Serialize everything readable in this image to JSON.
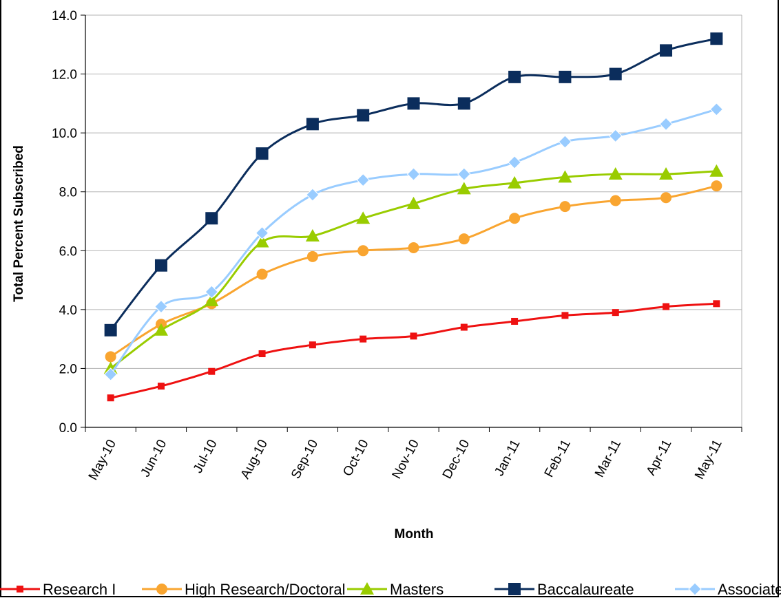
{
  "chart_data": {
    "type": "line",
    "title": "",
    "xlabel": "Month",
    "ylabel": "Total Percent Subscribed",
    "ylim": [
      0,
      14
    ],
    "y_ticks": [
      "0.0",
      "2.0",
      "4.0",
      "6.0",
      "8.0",
      "10.0",
      "12.0",
      "14.0"
    ],
    "grid": "horizontal",
    "legend_position": "bottom",
    "categories": [
      "May-10",
      "Jun-10",
      "Jul-10",
      "Aug-10",
      "Sep-10",
      "Oct-10",
      "Nov-10",
      "Dec-10",
      "Jan-11",
      "Feb-11",
      "Mar-11",
      "Apr-11",
      "May-11"
    ],
    "series": [
      {
        "name": "Research I",
        "color": "#ee1111",
        "marker": "square-small",
        "values": [
          1.0,
          1.4,
          1.9,
          2.5,
          2.8,
          3.0,
          3.1,
          3.4,
          3.6,
          3.8,
          3.9,
          4.1,
          4.2
        ]
      },
      {
        "name": "High Research/Doctoral",
        "color": "#f9a530",
        "marker": "circle",
        "values": [
          2.4,
          3.5,
          4.2,
          5.2,
          5.8,
          6.0,
          6.1,
          6.4,
          7.1,
          7.5,
          7.7,
          7.8,
          8.2
        ]
      },
      {
        "name": "Masters",
        "color": "#99cc00",
        "marker": "triangle",
        "values": [
          2.0,
          3.3,
          4.3,
          6.3,
          6.5,
          7.1,
          7.6,
          8.1,
          8.3,
          8.5,
          8.6,
          8.6,
          8.7
        ]
      },
      {
        "name": "Baccalaureate",
        "color": "#0b2d5c",
        "marker": "square",
        "values": [
          3.3,
          5.5,
          7.1,
          9.3,
          10.3,
          10.6,
          11.0,
          11.0,
          11.9,
          11.9,
          12.0,
          12.8,
          13.2
        ]
      },
      {
        "name": "Associate",
        "color": "#99ccff",
        "marker": "diamond",
        "values": [
          1.8,
          4.1,
          4.6,
          6.6,
          7.9,
          8.4,
          8.6,
          8.6,
          9.0,
          9.7,
          9.9,
          10.3,
          10.8
        ]
      }
    ]
  }
}
